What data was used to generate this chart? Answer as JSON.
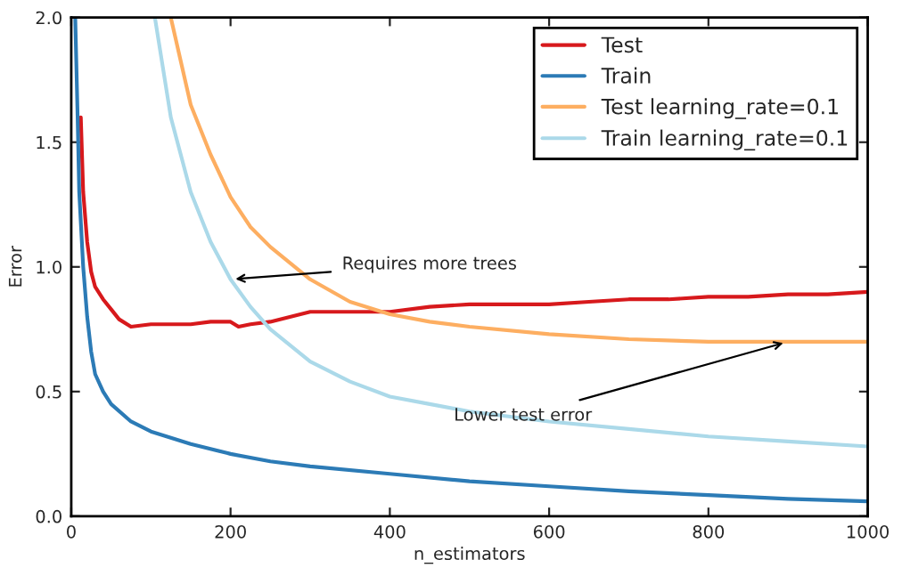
{
  "chart_data": {
    "type": "line",
    "xlabel": "n_estimators",
    "ylabel": "Error",
    "xlim": [
      0,
      1000
    ],
    "xticks": [
      0,
      200,
      400,
      600,
      800,
      1000
    ],
    "ylim": [
      0,
      2.0
    ],
    "yticks": [
      {
        "value": 0,
        "label": "0.0"
      },
      {
        "value": 0.5,
        "label": "0.5"
      },
      {
        "value": 1.0,
        "label": "1.0"
      },
      {
        "value": 1.5,
        "label": "1.5"
      },
      {
        "value": 2.0,
        "label": "2.0"
      }
    ],
    "grid": false,
    "legend": "top right",
    "series": [
      {
        "name": "Test",
        "color": "#d7191c",
        "x": [
          12,
          15,
          20,
          25,
          30,
          40,
          50,
          60,
          75,
          100,
          125,
          150,
          175,
          200,
          210,
          225,
          250,
          300,
          350,
          400,
          450,
          500,
          550,
          600,
          650,
          700,
          750,
          800,
          850,
          900,
          950,
          1000
        ],
        "values": [
          1.6,
          1.3,
          1.1,
          0.98,
          0.92,
          0.87,
          0.83,
          0.79,
          0.76,
          0.77,
          0.77,
          0.77,
          0.78,
          0.78,
          0.76,
          0.77,
          0.78,
          0.82,
          0.82,
          0.82,
          0.84,
          0.85,
          0.85,
          0.85,
          0.86,
          0.87,
          0.87,
          0.88,
          0.88,
          0.89,
          0.89,
          0.9
        ]
      },
      {
        "name": "Train",
        "color": "#2c7bb6",
        "x": [
          5,
          8,
          10,
          15,
          20,
          25,
          30,
          40,
          50,
          75,
          100,
          150,
          200,
          250,
          300,
          400,
          500,
          600,
          700,
          800,
          900,
          1000
        ],
        "values": [
          2.0,
          1.6,
          1.3,
          1.0,
          0.8,
          0.66,
          0.57,
          0.5,
          0.45,
          0.38,
          0.34,
          0.29,
          0.25,
          0.22,
          0.2,
          0.17,
          0.14,
          0.12,
          0.1,
          0.085,
          0.07,
          0.06
        ]
      },
      {
        "name": "Test learning_rate=0.1",
        "color": "#fdae61",
        "x": [
          125,
          150,
          175,
          200,
          225,
          250,
          300,
          350,
          400,
          450,
          500,
          600,
          700,
          800,
          900,
          1000
        ],
        "values": [
          2.0,
          1.65,
          1.45,
          1.28,
          1.16,
          1.08,
          0.95,
          0.86,
          0.81,
          0.78,
          0.76,
          0.73,
          0.71,
          0.7,
          0.7,
          0.7
        ]
      },
      {
        "name": "Train learning_rate=0.1",
        "color": "#abd9e9",
        "x": [
          105,
          115,
          125,
          150,
          175,
          200,
          225,
          250,
          300,
          350,
          400,
          450,
          500,
          600,
          700,
          800,
          900,
          1000
        ],
        "values": [
          2.0,
          1.8,
          1.6,
          1.3,
          1.1,
          0.95,
          0.84,
          0.75,
          0.62,
          0.54,
          0.48,
          0.45,
          0.42,
          0.38,
          0.35,
          0.32,
          0.3,
          0.28
        ]
      }
    ],
    "annotations": [
      {
        "text": "Requires more trees",
        "x": 200,
        "y": 0.95
      },
      {
        "text": "Lower test error",
        "x": 900,
        "y": 0.7
      }
    ]
  }
}
